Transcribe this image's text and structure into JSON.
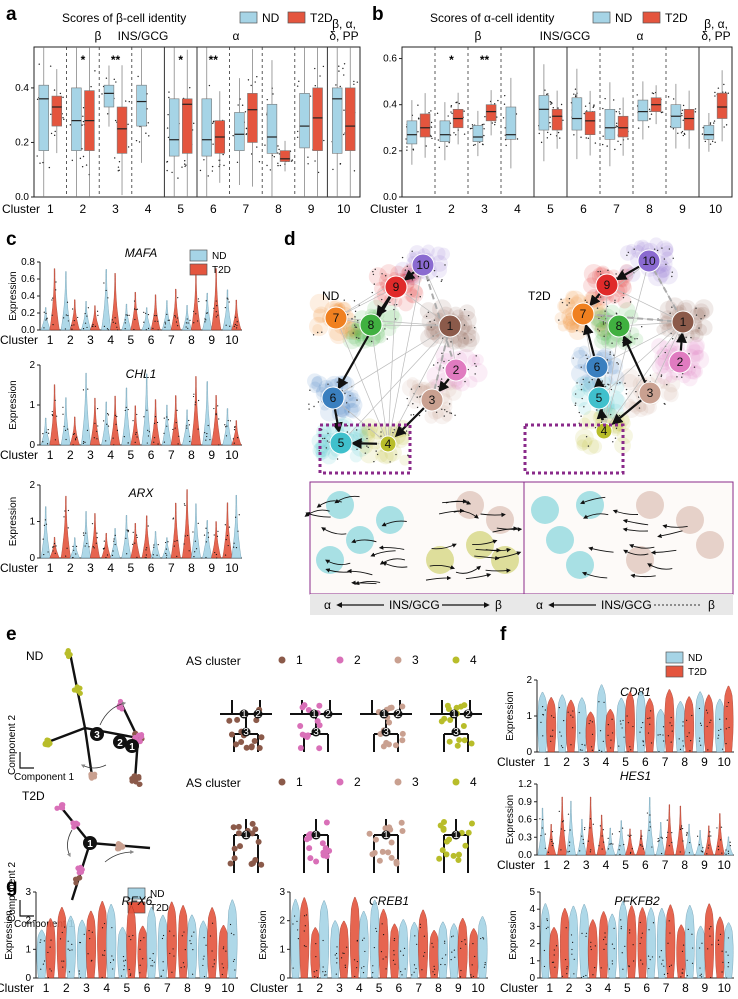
{
  "colors": {
    "nd": "#a6d4e6",
    "t2d": "#e4553e",
    "nd_stroke": "#5a8ea4",
    "t2d_stroke": "#9a2a18",
    "cluster": [
      "#8b5a4a",
      "#e07bc0",
      "#c9a090",
      "#b8bd2a",
      "#40c0cc",
      "#3a7fbf",
      "#f08020",
      "#40b040",
      "#e02a2a",
      "#8a6ad0"
    ]
  },
  "legend": {
    "nd": "ND",
    "t2d": "T2D"
  },
  "panel_a": {
    "label": "a",
    "title": "Scores of β-cell identity",
    "groups": [
      "β",
      "INS/GCG",
      "α",
      "β, α,\nδ, PP"
    ],
    "cluster_word": "Cluster",
    "clusters": [
      "1",
      "2",
      "3",
      "4",
      "5",
      "6",
      "7",
      "8",
      "9",
      "10"
    ],
    "sig": [
      "",
      "*",
      "**",
      "",
      "*",
      "**",
      "",
      "",
      "",
      ""
    ],
    "yticks": [
      "0.0",
      "0.2",
      "0.4"
    ]
  },
  "panel_b": {
    "label": "b",
    "title": "Scores of α-cell identity",
    "groups": [
      "β",
      "INS/GCG",
      "α",
      "β, α,\nδ, PP"
    ],
    "cluster_word": "Cluster",
    "clusters": [
      "1",
      "2",
      "3",
      "4",
      "5",
      "6",
      "7",
      "8",
      "9",
      "10"
    ],
    "sig": [
      "",
      "*",
      "**",
      "",
      "",
      "",
      "",
      "",
      "",
      ""
    ],
    "yticks": [
      "0.0",
      "0.2",
      "0.4",
      "0.6"
    ]
  },
  "panel_c": {
    "label": "c",
    "ylabel": "Expression",
    "cluster_word": "Cluster",
    "genes": [
      {
        "name": "MAFA",
        "yticks": [
          "0.0",
          "0.2",
          "0.4",
          "0.6",
          "0.8"
        ]
      },
      {
        "name": "CHL1",
        "yticks": [
          "0",
          "1",
          "2"
        ]
      },
      {
        "name": "ARX",
        "yticks": [
          "0",
          "1",
          "2"
        ]
      }
    ]
  },
  "panel_d": {
    "label": "d",
    "nd_title": "ND",
    "t2d_title": "T2D",
    "axis_left": "α",
    "axis_mid": "INS/GCG",
    "axis_right": "β",
    "nodes": [
      "1",
      "2",
      "3",
      "4",
      "5",
      "6",
      "7",
      "8",
      "9",
      "10"
    ]
  },
  "panel_e": {
    "label": "e",
    "nd_title": "ND",
    "t2d_title": "T2D",
    "legend_title": "AS cluster",
    "legend_items": [
      "1",
      "2",
      "3",
      "4"
    ],
    "axis1": "Component 1",
    "axis2": "Component 2",
    "nd_nodes": [
      "3",
      "2",
      "1"
    ],
    "t2d_nodes": [
      "1"
    ]
  },
  "panel_f": {
    "label": "f",
    "ylabel": "Expression",
    "cluster_word": "Cluster",
    "genes": [
      {
        "name": "CD81",
        "yticks": [
          "0",
          "1",
          "2"
        ]
      },
      {
        "name": "HES1",
        "yticks": [
          "0.0",
          "0.3",
          "0.6",
          "0.9",
          "1.2"
        ]
      }
    ]
  },
  "panel_g": {
    "label": "g",
    "ylabel": "Expression",
    "cluster_word": "Cluster",
    "genes": [
      {
        "name": "RFX6",
        "yticks": [
          "0",
          "1",
          "2",
          "3"
        ]
      },
      {
        "name": "CREB1",
        "yticks": [
          "0",
          "1",
          "2",
          "3"
        ]
      },
      {
        "name": "PFKFB2",
        "yticks": [
          "0",
          "1",
          "2",
          "3",
          "4",
          "5"
        ]
      }
    ]
  },
  "chart_data": [
    {
      "type": "box",
      "title": "Scores of β-cell identity",
      "xlabel": "Cluster",
      "ylim": [
        0.0,
        0.55
      ],
      "categories": [
        "1",
        "2",
        "3",
        "4",
        "5",
        "6",
        "7",
        "8",
        "9",
        "10"
      ],
      "series": [
        {
          "name": "ND",
          "median": [
            0.36,
            0.28,
            0.38,
            0.35,
            0.21,
            0.21,
            0.23,
            0.22,
            0.26,
            0.36
          ],
          "q1": [
            0.17,
            0.17,
            0.33,
            0.26,
            0.15,
            0.15,
            0.17,
            0.16,
            0.18,
            0.16
          ],
          "q3": [
            0.41,
            0.4,
            0.41,
            0.41,
            0.36,
            0.36,
            0.31,
            0.34,
            0.38,
            0.4
          ]
        },
        {
          "name": "T2D",
          "median": [
            0.33,
            0.28,
            0.25,
            null,
            0.34,
            0.22,
            0.32,
            0.14,
            0.29,
            0.26
          ],
          "q1": [
            0.26,
            0.17,
            0.16,
            null,
            0.16,
            0.16,
            0.2,
            0.13,
            0.17,
            0.17
          ],
          "q3": [
            0.37,
            0.39,
            0.33,
            null,
            0.36,
            0.28,
            0.38,
            0.17,
            0.4,
            0.4
          ]
        }
      ]
    },
    {
      "type": "box",
      "title": "Scores of α-cell identity",
      "xlabel": "Cluster",
      "ylim": [
        0.0,
        0.65
      ],
      "categories": [
        "1",
        "2",
        "3",
        "4",
        "5",
        "6",
        "7",
        "8",
        "9",
        "10"
      ],
      "series": [
        {
          "name": "ND",
          "median": [
            0.27,
            0.27,
            0.26,
            0.27,
            0.38,
            0.34,
            0.3,
            0.37,
            0.35,
            0.27
          ],
          "q1": [
            0.23,
            0.24,
            0.24,
            0.25,
            0.29,
            0.29,
            0.25,
            0.33,
            0.3,
            0.25
          ],
          "q3": [
            0.33,
            0.33,
            0.31,
            0.39,
            0.44,
            0.43,
            0.38,
            0.42,
            0.4,
            0.31
          ]
        },
        {
          "name": "T2D",
          "median": [
            0.3,
            0.34,
            0.37,
            null,
            0.35,
            0.33,
            0.3,
            0.4,
            0.34,
            0.39
          ],
          "q1": [
            0.26,
            0.3,
            0.33,
            null,
            0.29,
            0.27,
            0.26,
            0.37,
            0.29,
            0.34
          ],
          "q3": [
            0.36,
            0.38,
            0.4,
            null,
            0.38,
            0.37,
            0.35,
            0.43,
            0.38,
            0.45
          ]
        }
      ]
    }
  ]
}
